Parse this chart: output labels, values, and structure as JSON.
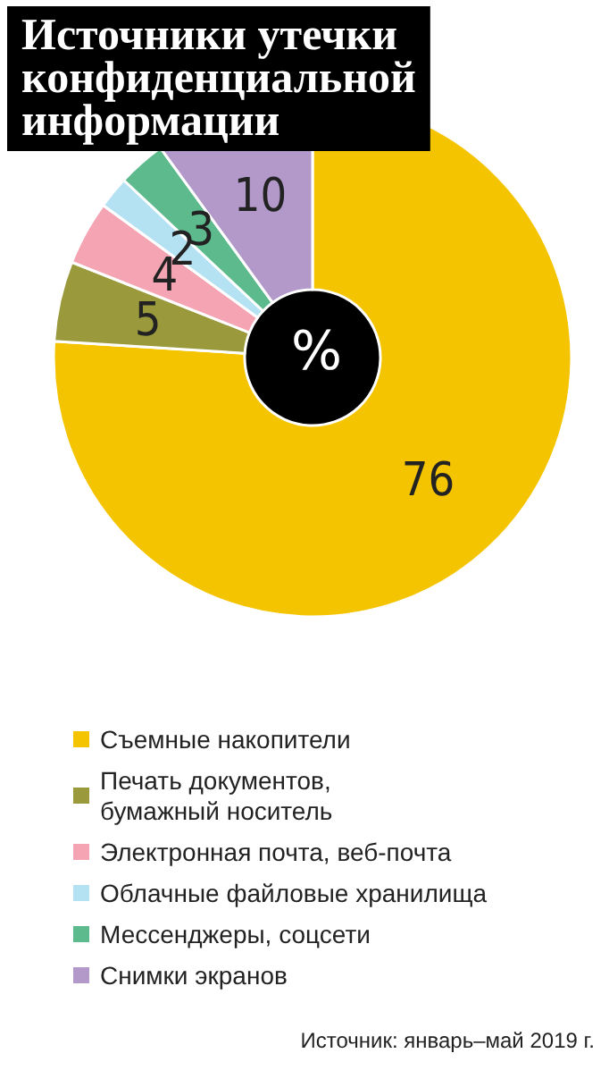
{
  "chart_data": {
    "type": "donut",
    "title": "Источники утечки\nконфиденциальной\nинформации",
    "categories": [
      "Съемные накопители",
      "Печать документов,\nбумажный носитель",
      "Электронная почта, веб-почта",
      "Облачные файловые хранилища",
      "Мессенджеры, соцсети",
      "Снимки экранов"
    ],
    "values": [
      76,
      5,
      4,
      2,
      3,
      10
    ],
    "colors": [
      "#f5c400",
      "#9a9a3c",
      "#f4a4b2",
      "#b5e2f3",
      "#5dba8c",
      "#b398ca"
    ],
    "data_labels": true,
    "legend": "bottom",
    "annotations": [
      "%",
      "Источник: январь–май 2019 г."
    ]
  }
}
